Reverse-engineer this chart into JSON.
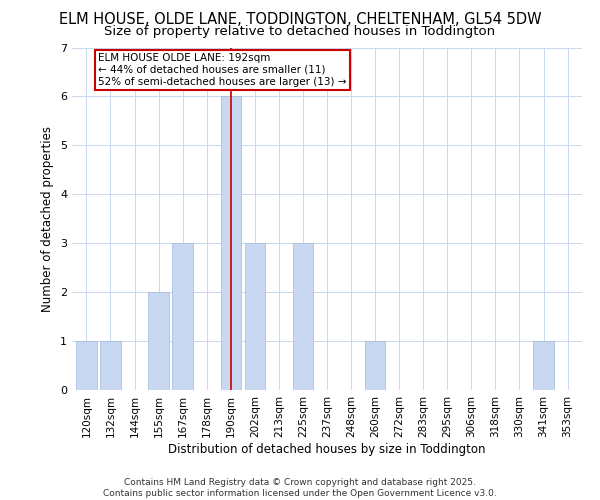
{
  "title": "ELM HOUSE, OLDE LANE, TODDINGTON, CHELTENHAM, GL54 5DW",
  "subtitle": "Size of property relative to detached houses in Toddington",
  "xlabel": "Distribution of detached houses by size in Toddington",
  "ylabel": "Number of detached properties",
  "bin_labels": [
    "120sqm",
    "132sqm",
    "144sqm",
    "155sqm",
    "167sqm",
    "178sqm",
    "190sqm",
    "202sqm",
    "213sqm",
    "225sqm",
    "237sqm",
    "248sqm",
    "260sqm",
    "272sqm",
    "283sqm",
    "295sqm",
    "306sqm",
    "318sqm",
    "330sqm",
    "341sqm",
    "353sqm"
  ],
  "bar_heights": [
    1,
    1,
    0,
    2,
    3,
    0,
    6,
    3,
    0,
    3,
    0,
    0,
    1,
    0,
    0,
    0,
    0,
    0,
    0,
    1,
    0
  ],
  "highlight_index": 6,
  "bar_color": "#c8d8f0",
  "bar_edge_color": "#a0b8e0",
  "vline_x": 6,
  "vline_color": "#cc0000",
  "annotation_text": "ELM HOUSE OLDE LANE: 192sqm\n← 44% of detached houses are smaller (11)\n52% of semi-detached houses are larger (13) →",
  "annotation_box_color": "#ffffff",
  "annotation_box_edgecolor": "#cc0000",
  "ylim": [
    0,
    7
  ],
  "yticks": [
    0,
    1,
    2,
    3,
    4,
    5,
    6,
    7
  ],
  "footer_text": "Contains HM Land Registry data © Crown copyright and database right 2025.\nContains public sector information licensed under the Open Government Licence v3.0.",
  "bg_color": "#ffffff",
  "grid_color": "#c8d8f0",
  "title_fontsize": 10.5,
  "subtitle_fontsize": 9.5,
  "axis_label_fontsize": 8.5,
  "tick_fontsize": 7.5,
  "footer_fontsize": 6.5,
  "annotation_fontsize": 7.5
}
